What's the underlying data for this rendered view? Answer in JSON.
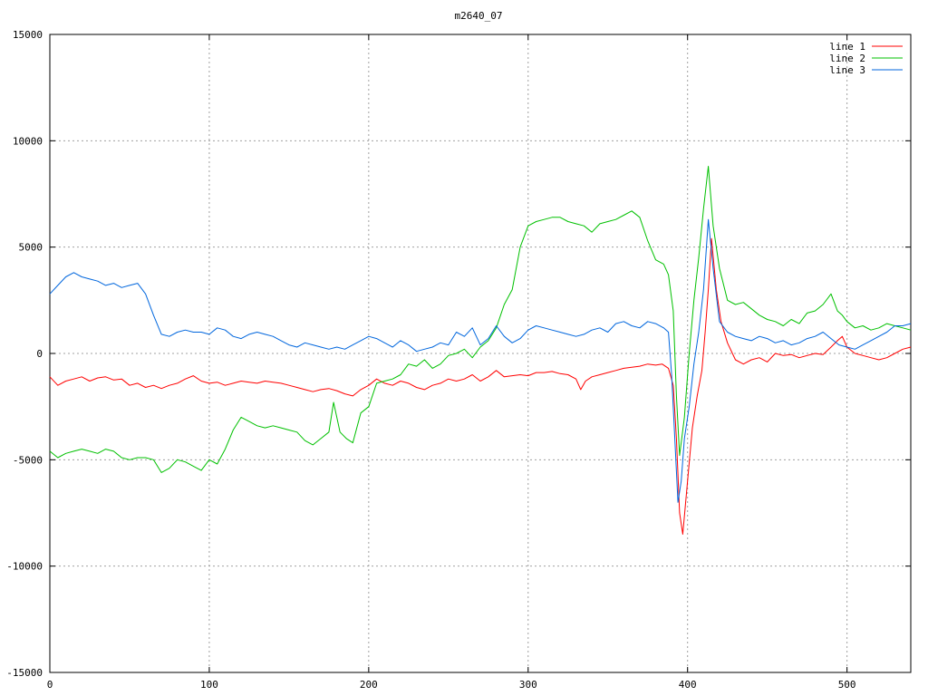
{
  "chart_data": {
    "type": "line",
    "title": "m2640_07",
    "xlabel": "",
    "ylabel": "",
    "xlim": [
      0,
      540
    ],
    "ylim": [
      -15000,
      15000
    ],
    "x_ticks": [
      0,
      100,
      200,
      300,
      400,
      500
    ],
    "y_ticks": [
      -15000,
      -10000,
      -5000,
      0,
      5000,
      10000,
      15000
    ],
    "grid": true,
    "legend_position": "top-right",
    "series": [
      {
        "name": "line 1",
        "color": "#ff0000",
        "x": [
          0,
          5,
          10,
          15,
          20,
          25,
          30,
          35,
          40,
          45,
          50,
          55,
          60,
          65,
          70,
          75,
          80,
          85,
          90,
          95,
          100,
          105,
          110,
          115,
          120,
          125,
          130,
          135,
          140,
          145,
          150,
          155,
          160,
          165,
          170,
          175,
          180,
          185,
          190,
          195,
          200,
          205,
          210,
          215,
          220,
          225,
          230,
          235,
          240,
          245,
          250,
          255,
          260,
          265,
          270,
          275,
          280,
          285,
          290,
          295,
          300,
          305,
          310,
          315,
          320,
          325,
          330,
          333,
          336,
          340,
          345,
          350,
          355,
          360,
          365,
          370,
          375,
          380,
          384,
          388,
          391,
          393,
          395,
          397,
          400,
          403,
          406,
          409,
          411,
          413,
          415,
          418,
          421,
          425,
          430,
          435,
          440,
          445,
          450,
          455,
          460,
          465,
          470,
          475,
          480,
          485,
          490,
          494,
          497,
          500,
          505,
          510,
          515,
          520,
          525,
          530,
          535,
          540
        ],
        "y": [
          -1100,
          -1500,
          -1300,
          -1200,
          -1100,
          -1300,
          -1150,
          -1100,
          -1250,
          -1200,
          -1500,
          -1400,
          -1600,
          -1500,
          -1650,
          -1500,
          -1400,
          -1200,
          -1050,
          -1300,
          -1400,
          -1350,
          -1500,
          -1400,
          -1300,
          -1350,
          -1400,
          -1300,
          -1350,
          -1400,
          -1500,
          -1600,
          -1700,
          -1800,
          -1700,
          -1650,
          -1750,
          -1900,
          -2000,
          -1700,
          -1500,
          -1200,
          -1400,
          -1500,
          -1300,
          -1400,
          -1600,
          -1700,
          -1500,
          -1400,
          -1200,
          -1300,
          -1200,
          -1000,
          -1300,
          -1100,
          -800,
          -1100,
          -1050,
          -1000,
          -1050,
          -900,
          -900,
          -850,
          -950,
          -1000,
          -1200,
          -1700,
          -1300,
          -1100,
          -1000,
          -900,
          -800,
          -700,
          -650,
          -600,
          -500,
          -550,
          -500,
          -700,
          -1500,
          -4000,
          -7500,
          -8500,
          -6000,
          -3500,
          -2000,
          -800,
          1000,
          3000,
          5400,
          3000,
          1500,
          500,
          -300,
          -500,
          -300,
          -200,
          -400,
          0,
          -100,
          -50,
          -200,
          -100,
          0,
          -50,
          300,
          600,
          800,
          300,
          0,
          -100,
          -200,
          -300,
          -200,
          0,
          200,
          300
        ]
      },
      {
        "name": "line 2",
        "color": "#00c000",
        "x": [
          0,
          5,
          10,
          15,
          20,
          25,
          30,
          35,
          40,
          45,
          50,
          55,
          60,
          65,
          70,
          75,
          80,
          85,
          90,
          95,
          100,
          105,
          110,
          115,
          120,
          125,
          130,
          135,
          140,
          145,
          150,
          155,
          160,
          165,
          170,
          175,
          178,
          182,
          186,
          190,
          195,
          200,
          205,
          210,
          215,
          220,
          225,
          230,
          235,
          240,
          245,
          250,
          255,
          260,
          265,
          270,
          275,
          280,
          285,
          290,
          295,
          300,
          305,
          310,
          315,
          320,
          325,
          330,
          335,
          340,
          345,
          350,
          355,
          360,
          365,
          370,
          375,
          380,
          385,
          388,
          391,
          393,
          395,
          398,
          401,
          404,
          407,
          410,
          413,
          416,
          420,
          425,
          430,
          435,
          440,
          445,
          450,
          455,
          460,
          465,
          470,
          475,
          480,
          485,
          490,
          494,
          497,
          500,
          505,
          510,
          515,
          520,
          525,
          530,
          535,
          540
        ],
        "y": [
          -4600,
          -4900,
          -4700,
          -4600,
          -4500,
          -4600,
          -4700,
          -4500,
          -4600,
          -4900,
          -5000,
          -4900,
          -4900,
          -5000,
          -5600,
          -5400,
          -5000,
          -5100,
          -5300,
          -5500,
          -5000,
          -5200,
          -4500,
          -3600,
          -3000,
          -3200,
          -3400,
          -3500,
          -3400,
          -3500,
          -3600,
          -3700,
          -4100,
          -4300,
          -4000,
          -3700,
          -2300,
          -3700,
          -4000,
          -4200,
          -2800,
          -2500,
          -1400,
          -1300,
          -1200,
          -1000,
          -500,
          -600,
          -300,
          -700,
          -500,
          -100,
          0,
          200,
          -200,
          300,
          600,
          1200,
          2300,
          3000,
          5000,
          6000,
          6200,
          6300,
          6400,
          6400,
          6200,
          6100,
          6000,
          5700,
          6100,
          6200,
          6300,
          6500,
          6700,
          6400,
          5300,
          4400,
          4200,
          3700,
          2000,
          -2000,
          -4800,
          -3000,
          0,
          2500,
          4500,
          6800,
          8800,
          6000,
          4000,
          2500,
          2300,
          2400,
          2100,
          1800,
          1600,
          1500,
          1300,
          1600,
          1400,
          1900,
          2000,
          2300,
          2800,
          2000,
          1800,
          1500,
          1200,
          1300,
          1100,
          1200,
          1400,
          1300,
          1200,
          1100
        ]
      },
      {
        "name": "line 3",
        "color": "#0066dd",
        "x": [
          0,
          5,
          10,
          15,
          20,
          25,
          30,
          35,
          40,
          45,
          50,
          55,
          60,
          65,
          70,
          75,
          80,
          85,
          90,
          95,
          100,
          105,
          110,
          115,
          120,
          125,
          130,
          135,
          140,
          145,
          150,
          155,
          160,
          165,
          170,
          175,
          180,
          185,
          190,
          195,
          200,
          205,
          210,
          215,
          220,
          225,
          230,
          235,
          240,
          245,
          250,
          255,
          260,
          265,
          270,
          275,
          280,
          285,
          290,
          295,
          300,
          305,
          310,
          315,
          320,
          325,
          330,
          335,
          340,
          345,
          350,
          355,
          360,
          365,
          370,
          375,
          380,
          385,
          388,
          390,
          392,
          394,
          396,
          398,
          401,
          404,
          407,
          410,
          413,
          416,
          420,
          425,
          430,
          435,
          440,
          445,
          450,
          455,
          460,
          465,
          470,
          475,
          480,
          485,
          490,
          495,
          500,
          505,
          510,
          515,
          520,
          525,
          530,
          535,
          540
        ],
        "y": [
          2800,
          3200,
          3600,
          3800,
          3600,
          3500,
          3400,
          3200,
          3300,
          3100,
          3200,
          3300,
          2800,
          1800,
          900,
          800,
          1000,
          1100,
          1000,
          1000,
          900,
          1200,
          1100,
          800,
          700,
          900,
          1000,
          900,
          800,
          600,
          400,
          300,
          500,
          400,
          300,
          200,
          300,
          200,
          400,
          600,
          800,
          700,
          500,
          300,
          600,
          400,
          100,
          200,
          300,
          500,
          400,
          1000,
          800,
          1200,
          400,
          700,
          1300,
          800,
          500,
          700,
          1100,
          1300,
          1200,
          1100,
          1000,
          900,
          800,
          900,
          1100,
          1200,
          1000,
          1400,
          1500,
          1300,
          1200,
          1500,
          1400,
          1200,
          1000,
          -1000,
          -4000,
          -7000,
          -6000,
          -4000,
          -2500,
          -500,
          1000,
          3000,
          6300,
          4000,
          1500,
          1000,
          800,
          700,
          600,
          800,
          700,
          500,
          600,
          400,
          500,
          700,
          800,
          1000,
          700,
          400,
          300,
          200,
          400,
          600,
          800,
          1000,
          1300,
          1300,
          1400
        ]
      }
    ]
  }
}
